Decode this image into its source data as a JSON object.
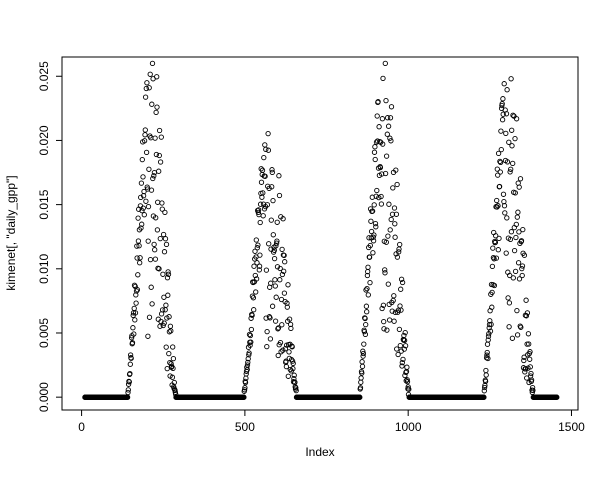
{
  "chart_data": {
    "type": "scatter",
    "title": "",
    "xlabel": "Index",
    "ylabel": "kimenet[, \"daily_gpp\"]",
    "marker": "open-circle",
    "marker_color": "#000000",
    "grid": false,
    "legend": "none",
    "x_range": [
      -60,
      1520
    ],
    "y_range": [
      -0.001,
      0.0265
    ],
    "x_ticks": [
      0,
      500,
      1000,
      1500
    ],
    "x_tick_labels": [
      "0",
      "500",
      "1000",
      "1500"
    ],
    "y_ticks": [
      0.0,
      0.005,
      0.01,
      0.015,
      0.02,
      0.025
    ],
    "y_tick_labels": [
      "0.000",
      "0.005",
      "0.010",
      "0.015",
      "0.020",
      "0.025"
    ],
    "x_domain": [
      10,
      1455
    ],
    "baseline_value": 0.0,
    "baseline_segments": [
      [
        10,
        140
      ],
      [
        290,
        495
      ],
      [
        660,
        850
      ],
      [
        1005,
        1230
      ],
      [
        1385,
        1455
      ]
    ],
    "seasons": [
      {
        "start": 140,
        "peak": 210,
        "end": 290,
        "max": 0.0255
      },
      {
        "start": 495,
        "peak": 555,
        "end": 660,
        "max": 0.0205
      },
      {
        "start": 850,
        "peak": 925,
        "end": 1005,
        "max": 0.0255
      },
      {
        "start": 1230,
        "peak": 1305,
        "end": 1385,
        "max": 0.0245
      }
    ],
    "description": "Daily GPP time series over ~1460 days: four seasonal bursts rising from an exact-zero winter baseline to peaks near 0.025, 0.020, 0.025 and 0.024, with tight rising edges and noisy scattered declines."
  }
}
